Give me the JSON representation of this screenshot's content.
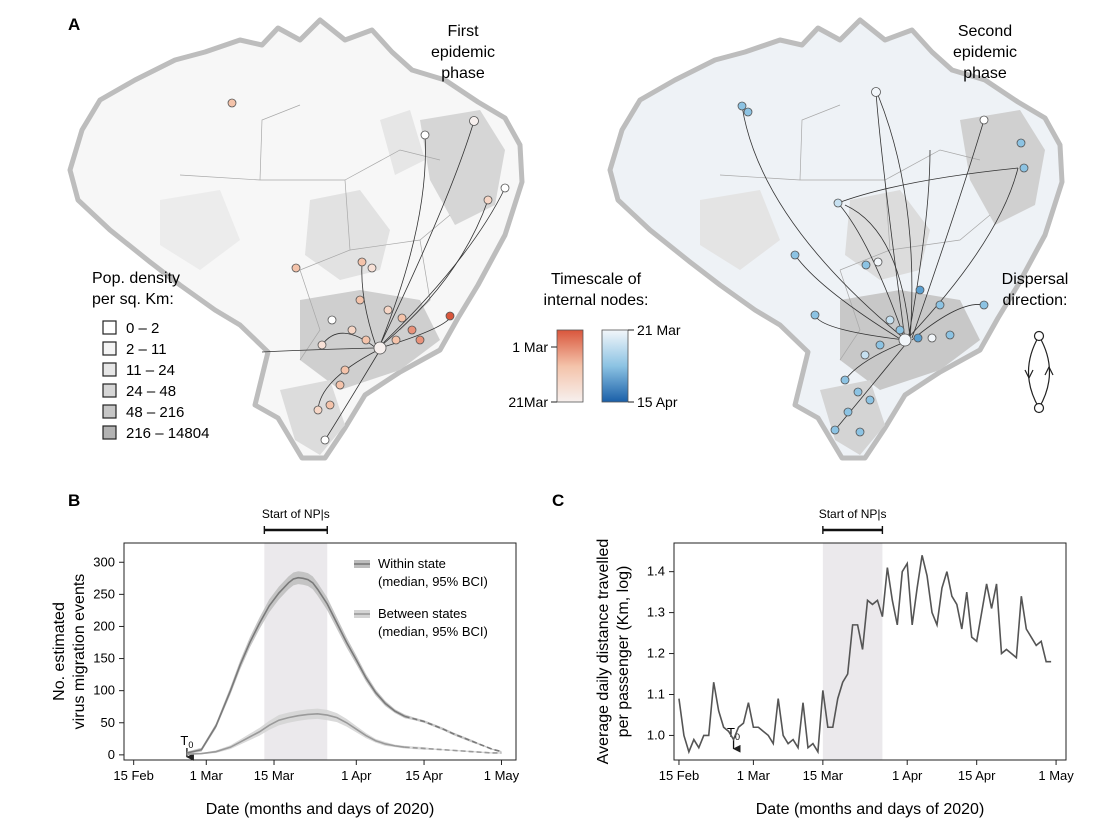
{
  "panels": {
    "a": "A",
    "b": "B",
    "c": "C"
  },
  "map_left": {
    "title_lines": [
      "First",
      "epidemic",
      "phase"
    ],
    "legend_title_lines": [
      "Pop. density",
      "per sq. Km:"
    ],
    "density_classes": [
      "0 – 2",
      "2 – 11",
      "11 – 24",
      "24 – 48",
      "48 – 216",
      "216 – 14804"
    ],
    "density_colors": [
      "#ffffff",
      "#f4f4f4",
      "#e6e6e6",
      "#d6d6d6",
      "#c6c6c6",
      "#b2b2b2"
    ],
    "node_color_scale": [
      "#f0f0f0",
      "#f4c3aa",
      "#d9563c"
    ]
  },
  "map_right": {
    "title_lines": [
      "Second",
      "epidemic",
      "phase"
    ],
    "dispersal_lines": [
      "Dispersal",
      "direction:"
    ],
    "node_color_scale": [
      "#f2f6fa",
      "#8cc3e3",
      "#1a5fa8"
    ]
  },
  "timescale": {
    "title_lines": [
      "Timescale of",
      "internal nodes:"
    ],
    "red_top": "1 Mar",
    "red_bottom": "21Mar",
    "blue_top": "21 Mar",
    "blue_bottom": "15 Apr"
  },
  "chart_data": [
    {
      "id": "B",
      "type": "line",
      "xlabel": "Date (months and days of 2020)",
      "ylabel_lines": [
        "No. estimated",
        "virus migration events"
      ],
      "x_ticks": [
        "15 Feb",
        "1 Mar",
        "15 Mar",
        "1 Apr",
        "15 Apr",
        "1 May"
      ],
      "x_tick_days": [
        0,
        15,
        29,
        46,
        60,
        76
      ],
      "y_ticks": [
        0,
        50,
        100,
        150,
        200,
        250,
        300
      ],
      "ylim": [
        -8,
        330
      ],
      "xlim": [
        -2,
        79
      ],
      "shade": {
        "label": "Start of NP|s",
        "x0": 27,
        "x1": 40
      },
      "t0": {
        "label": "T",
        "sub": "0",
        "x": 11
      },
      "series": [
        {
          "name": "Within state",
          "note": "(median, 95% BCI)",
          "color": "#7a7a7a",
          "band_color": "#bdbdbd",
          "dashed_from": 56,
          "x": [
            11,
            14,
            17,
            20,
            22,
            24,
            26,
            28,
            30,
            32,
            33,
            34,
            35,
            36,
            37,
            38,
            40,
            42,
            44,
            46,
            48,
            50,
            52,
            54,
            56,
            58,
            60,
            62,
            64,
            66,
            68,
            70,
            72,
            74,
            76
          ],
          "y": [
            3,
            8,
            45,
            100,
            140,
            175,
            205,
            232,
            252,
            268,
            274,
            276,
            275,
            273,
            268,
            258,
            235,
            205,
            175,
            148,
            120,
            97,
            80,
            68,
            60,
            56,
            52,
            46,
            40,
            33,
            27,
            21,
            15,
            9,
            5
          ],
          "band": [
            2,
            3,
            4,
            6,
            7,
            8,
            9,
            10,
            10,
            10,
            10,
            10,
            10,
            10,
            10,
            10,
            10,
            9,
            8,
            7,
            6,
            5,
            4,
            3,
            3,
            2,
            2,
            2,
            2,
            2,
            2,
            2,
            1,
            1,
            1
          ]
        },
        {
          "name": "Between states",
          "note": "(median, 95% BCI)",
          "color": "#9a9a9a",
          "band_color": "#d4d4d4",
          "dashed_from": 56,
          "x": [
            11,
            14,
            17,
            20,
            22,
            24,
            26,
            28,
            30,
            32,
            34,
            36,
            38,
            40,
            42,
            44,
            46,
            48,
            50,
            52,
            54,
            56,
            58,
            60,
            62,
            64,
            66,
            68,
            70,
            72,
            74,
            76
          ],
          "y": [
            1,
            2,
            5,
            12,
            20,
            28,
            36,
            46,
            54,
            58,
            61,
            63,
            64,
            62,
            58,
            50,
            40,
            30,
            22,
            17,
            14,
            12,
            11,
            10,
            9,
            8,
            7,
            6,
            5,
            4,
            3,
            3
          ],
          "band": [
            1,
            1,
            2,
            3,
            4,
            5,
            6,
            7,
            8,
            8,
            8,
            8,
            8,
            8,
            7,
            6,
            5,
            4,
            3,
            3,
            2,
            2,
            2,
            2,
            1,
            1,
            1,
            1,
            1,
            1,
            1,
            1
          ]
        }
      ]
    },
    {
      "id": "C",
      "type": "line",
      "xlabel": "Date (months and days of 2020)",
      "ylabel_lines": [
        "Average daily distance travelled",
        "per passenger (Km, log)"
      ],
      "x_ticks": [
        "15 Feb",
        "1 Mar",
        "15 Mar",
        "1 Apr",
        "15 Apr",
        "1 May"
      ],
      "x_tick_days": [
        0,
        15,
        29,
        46,
        60,
        76
      ],
      "y_ticks": [
        1.0,
        1.1,
        1.2,
        1.3,
        1.4
      ],
      "ylim": [
        0.94,
        1.47
      ],
      "xlim": [
        -1,
        78
      ],
      "shade": {
        "label": "Start of NP|s",
        "x0": 29,
        "x1": 41
      },
      "t0": {
        "label": "T",
        "sub": "0",
        "x": 11
      },
      "series": [
        {
          "name": "Average daily distance",
          "color": "#555555",
          "x": [
            0,
            1,
            2,
            3,
            4,
            5,
            6,
            7,
            8,
            9,
            10,
            11,
            12,
            13,
            14,
            15,
            16,
            17,
            18,
            19,
            20,
            21,
            22,
            23,
            24,
            25,
            26,
            27,
            28,
            29,
            30,
            31,
            32,
            33,
            34,
            35,
            36,
            37,
            38,
            39,
            40,
            41,
            42,
            43,
            44,
            45,
            46,
            47,
            48,
            49,
            50,
            51,
            52,
            53,
            54,
            55,
            56,
            57,
            58,
            59,
            60,
            61,
            62,
            63,
            64,
            65,
            66,
            67,
            68,
            69,
            70,
            71,
            72,
            73,
            74,
            75
          ],
          "y": [
            1.09,
            1.0,
            0.96,
            0.99,
            0.97,
            1.0,
            1.0,
            1.13,
            1.06,
            1.02,
            1.01,
            0.99,
            1.02,
            1.03,
            1.08,
            1.02,
            1.02,
            1.01,
            1.0,
            0.98,
            1.09,
            1.0,
            0.98,
            0.99,
            0.97,
            1.08,
            0.97,
            0.98,
            0.96,
            1.11,
            1.02,
            1.02,
            1.09,
            1.13,
            1.15,
            1.27,
            1.27,
            1.21,
            1.33,
            1.32,
            1.33,
            1.29,
            1.41,
            1.33,
            1.27,
            1.4,
            1.42,
            1.27,
            1.36,
            1.44,
            1.39,
            1.3,
            1.27,
            1.36,
            1.4,
            1.34,
            1.32,
            1.26,
            1.35,
            1.24,
            1.23,
            1.3,
            1.37,
            1.31,
            1.37,
            1.2,
            1.21,
            1.2,
            1.19,
            1.34,
            1.26,
            1.24,
            1.22,
            1.23,
            1.18,
            1.18
          ]
        }
      ]
    }
  ]
}
